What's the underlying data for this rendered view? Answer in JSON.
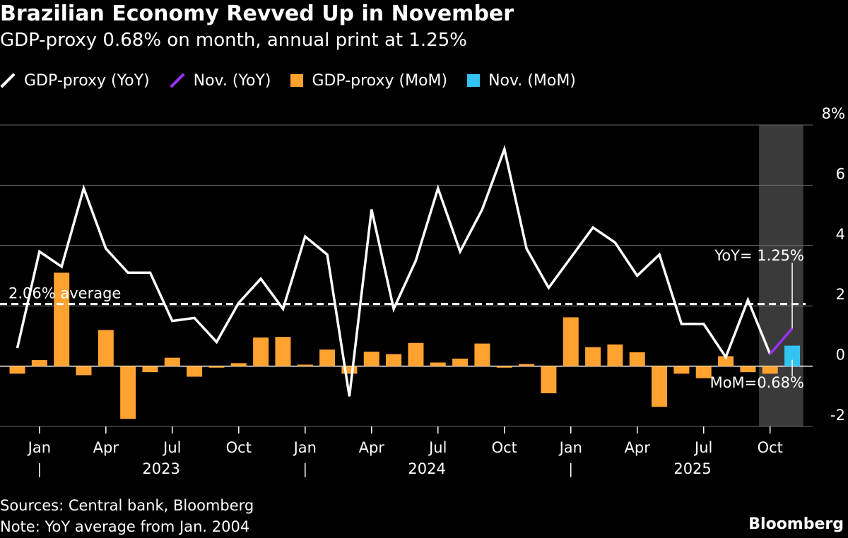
{
  "header": {
    "title": "Brazilian Economy Revved Up in November",
    "subtitle": "GDP-proxy 0.68% on month, annual print at 1.25%"
  },
  "legend": [
    {
      "label": "GDP-proxy (YoY)",
      "color": "#ffffff",
      "kind": "line"
    },
    {
      "label": "Nov. (YoY)",
      "color": "#9b30ff",
      "kind": "line"
    },
    {
      "label": "GDP-proxy (MoM)",
      "color": "#ffa230",
      "kind": "bar"
    },
    {
      "label": "Nov. (MoM)",
      "color": "#33c3f0",
      "kind": "bar"
    }
  ],
  "chart_data": {
    "type": "bar",
    "x": [
      "2022-12",
      "2023-01",
      "2023-02",
      "2023-03",
      "2023-04",
      "2023-05",
      "2023-06",
      "2023-07",
      "2023-08",
      "2023-09",
      "2023-10",
      "2023-11",
      "2023-12",
      "2024-01",
      "2024-02",
      "2024-03",
      "2024-04",
      "2024-05",
      "2024-06",
      "2024-07",
      "2024-08",
      "2024-09",
      "2024-10",
      "2024-11",
      "2024-12",
      "2025-01",
      "2025-02",
      "2025-03",
      "2025-04",
      "2025-05",
      "2025-06",
      "2025-07",
      "2025-08",
      "2025-09",
      "2025-10",
      "2025-11"
    ],
    "series": [
      {
        "name": "GDP-proxy (YoY)",
        "kind": "line",
        "color": "#ffffff",
        "values": [
          0.6,
          3.8,
          3.3,
          5.9,
          3.9,
          3.1,
          3.1,
          1.5,
          1.6,
          0.8,
          2.1,
          2.9,
          1.9,
          4.3,
          3.7,
          -1.0,
          5.2,
          1.9,
          3.5,
          5.9,
          3.8,
          5.2,
          7.2,
          3.9,
          2.6,
          3.6,
          4.6,
          4.1,
          3.0,
          3.7,
          1.4,
          1.4,
          0.3,
          2.2,
          0.4,
          null
        ]
      },
      {
        "name": "Nov. (YoY)",
        "kind": "line",
        "color": "#9b30ff",
        "values": [
          null,
          null,
          null,
          null,
          null,
          null,
          null,
          null,
          null,
          null,
          null,
          null,
          null,
          null,
          null,
          null,
          null,
          null,
          null,
          null,
          null,
          null,
          null,
          null,
          null,
          null,
          null,
          null,
          null,
          null,
          null,
          null,
          null,
          null,
          0.4,
          1.25
        ]
      },
      {
        "name": "GDP-proxy (MoM)",
        "kind": "bar",
        "color": "#ffa230",
        "values": [
          -0.25,
          0.2,
          3.1,
          -0.3,
          1.2,
          -1.75,
          -0.2,
          0.28,
          -0.35,
          -0.05,
          0.1,
          0.95,
          0.97,
          0.05,
          0.55,
          -0.25,
          0.48,
          0.4,
          0.77,
          0.12,
          0.25,
          0.75,
          -0.05,
          0.07,
          -0.9,
          1.62,
          0.63,
          0.72,
          0.46,
          -1.35,
          -0.25,
          -0.4,
          0.33,
          -0.2,
          -0.25,
          null
        ]
      },
      {
        "name": "Nov. (MoM)",
        "kind": "bar",
        "color": "#33c3f0",
        "values": [
          null,
          null,
          null,
          null,
          null,
          null,
          null,
          null,
          null,
          null,
          null,
          null,
          null,
          null,
          null,
          null,
          null,
          null,
          null,
          null,
          null,
          null,
          null,
          null,
          null,
          null,
          null,
          null,
          null,
          null,
          null,
          null,
          null,
          null,
          null,
          0.68
        ]
      }
    ],
    "ylim": [
      -2,
      8
    ],
    "yticks": [
      -2,
      0,
      2,
      4,
      6,
      8
    ],
    "ytick_labels": [
      "-2",
      "0",
      "2",
      "4",
      "6",
      "8%"
    ],
    "xtick_labels": [
      {
        "at": "2023-01",
        "label": "Jan"
      },
      {
        "at": "2023-04",
        "label": "Apr"
      },
      {
        "at": "2023-07",
        "label": "Jul"
      },
      {
        "at": "2023-10",
        "label": "Oct"
      },
      {
        "at": "2024-01",
        "label": "Jan"
      },
      {
        "at": "2024-04",
        "label": "Apr"
      },
      {
        "at": "2024-07",
        "label": "Jul"
      },
      {
        "at": "2024-10",
        "label": "Oct"
      },
      {
        "at": "2025-01",
        "label": "Jan"
      },
      {
        "at": "2025-04",
        "label": "Apr"
      },
      {
        "at": "2025-07",
        "label": "Jul"
      },
      {
        "at": "2025-10",
        "label": "Oct"
      }
    ],
    "years": [
      {
        "at": "2023-06",
        "label": "2023"
      },
      {
        "at": "2024-06",
        "label": "2024"
      },
      {
        "at": "2025-06",
        "label": "2025"
      }
    ],
    "year_separators": [
      "2023-01",
      "2024-01",
      "2025-01"
    ],
    "average": {
      "value": 2.06,
      "label": "2.06% average"
    },
    "highlight": {
      "from": "2025-10",
      "to": "2025-11"
    },
    "annotations": [
      {
        "at": "2025-11",
        "value": 1.25,
        "label": "YoY= 1.25%"
      },
      {
        "at": "2025-11",
        "value": 0.68,
        "label": "MoM=0.68%"
      }
    ],
    "grid": true,
    "legend_position": "top-left"
  },
  "footer": {
    "sources": "Sources: Central bank, Bloomberg",
    "note": "Note: YoY average from Jan. 2004",
    "brand": "Bloomberg"
  }
}
